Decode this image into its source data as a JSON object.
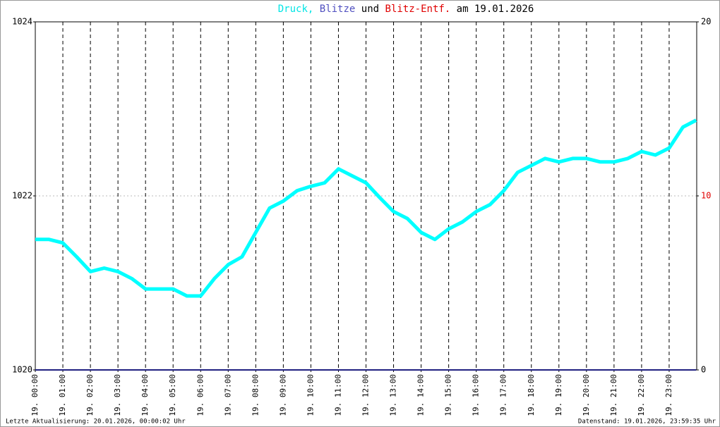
{
  "chart_data": {
    "type": "line",
    "title_parts": [
      {
        "text": "Druck,",
        "color": "#00e5e5"
      },
      {
        "text": "Blitze",
        "color": "#5050c0"
      },
      {
        "text": "und",
        "color": "#000000"
      },
      {
        "text": "Blitz-Entf.",
        "color": "#e00000"
      },
      {
        "text": "am 19.01.2026",
        "color": "#000000"
      }
    ],
    "x": [
      0,
      0.5,
      1,
      1.5,
      2,
      2.5,
      3,
      3.5,
      4,
      4.5,
      5,
      5.5,
      6,
      6.5,
      7,
      7.5,
      8,
      8.5,
      9,
      9.5,
      10,
      10.5,
      11,
      11.5,
      12,
      12.5,
      13,
      13.5,
      14,
      14.5,
      15,
      15.5,
      16,
      16.5,
      17,
      17.5,
      18,
      18.5,
      19,
      19.5,
      20,
      20.5,
      21,
      21.5,
      22,
      22.5,
      23,
      23.5,
      23.98
    ],
    "series": [
      {
        "color": "#00ffff",
        "values": [
          1021.5,
          1021.5,
          1021.46,
          1021.3,
          1021.13,
          1021.17,
          1021.13,
          1021.05,
          1020.93,
          1020.93,
          1020.93,
          1020.85,
          1020.85,
          1021.05,
          1021.21,
          1021.3,
          1021.58,
          1021.86,
          1021.94,
          1022.06,
          1022.11,
          1022.15,
          1022.31,
          1022.23,
          1022.15,
          1021.98,
          1021.82,
          1021.74,
          1021.58,
          1021.5,
          1021.62,
          1021.7,
          1021.82,
          1021.9,
          1022.06,
          1022.27,
          1022.35,
          1022.43,
          1022.39,
          1022.43,
          1022.43,
          1022.39,
          1022.39,
          1022.43,
          1022.51,
          1022.47,
          1022.55,
          1022.79,
          1022.87
        ]
      },
      {
        "color": "#202080",
        "axis": "y2",
        "values": [
          0,
          0,
          0,
          0,
          0,
          0,
          0,
          0,
          0,
          0,
          0,
          0,
          0,
          0,
          0,
          0,
          0,
          0,
          0,
          0,
          0,
          0,
          0,
          0,
          0,
          0,
          0,
          0,
          0,
          0,
          0,
          0,
          0,
          0,
          0,
          0,
          0,
          0,
          0,
          0,
          0,
          0,
          0,
          0,
          0,
          0,
          0,
          0,
          0
        ]
      }
    ],
    "xlim": [
      0,
      24
    ],
    "xticks": [
      {
        "value": 0,
        "label": "19. 00:00"
      },
      {
        "value": 1,
        "label": "19. 01:00"
      },
      {
        "value": 2,
        "label": "19. 02:00"
      },
      {
        "value": 3,
        "label": "19. 03:00"
      },
      {
        "value": 4,
        "label": "19. 04:00"
      },
      {
        "value": 5,
        "label": "19. 05:00"
      },
      {
        "value": 6,
        "label": "19. 06:00"
      },
      {
        "value": 7,
        "label": "19. 07:00"
      },
      {
        "value": 8,
        "label": "19. 08:00"
      },
      {
        "value": 9,
        "label": "19. 09:00"
      },
      {
        "value": 10,
        "label": "19. 10:00"
      },
      {
        "value": 11,
        "label": "19. 11:00"
      },
      {
        "value": 12,
        "label": "19. 12:00"
      },
      {
        "value": 13,
        "label": "19. 13:00"
      },
      {
        "value": 14,
        "label": "19. 14:00"
      },
      {
        "value": 15,
        "label": "19. 15:00"
      },
      {
        "value": 16,
        "label": "19. 16:00"
      },
      {
        "value": 17,
        "label": "19. 17:00"
      },
      {
        "value": 18,
        "label": "19. 18:00"
      },
      {
        "value": 19,
        "label": "19. 19:00"
      },
      {
        "value": 20,
        "label": "19. 20:00"
      },
      {
        "value": 21,
        "label": "19. 21:00"
      },
      {
        "value": 22,
        "label": "19. 22:00"
      },
      {
        "value": 23,
        "label": "19. 23:00"
      }
    ],
    "ylim": [
      1020,
      1024
    ],
    "yticks": [
      1020,
      1022,
      1024
    ],
    "y2lim": [
      0,
      20
    ],
    "y2ticks": [
      0,
      10,
      20
    ],
    "y2tick_colors": [
      "#000000",
      "#e00000",
      "#000000"
    ],
    "footer_left": "Letzte Aktualisierung: 20.01.2026, 00:00:02 Uhr",
    "footer_right": "Datenstand: 19.01.2026, 23:59:35 Uhr"
  }
}
